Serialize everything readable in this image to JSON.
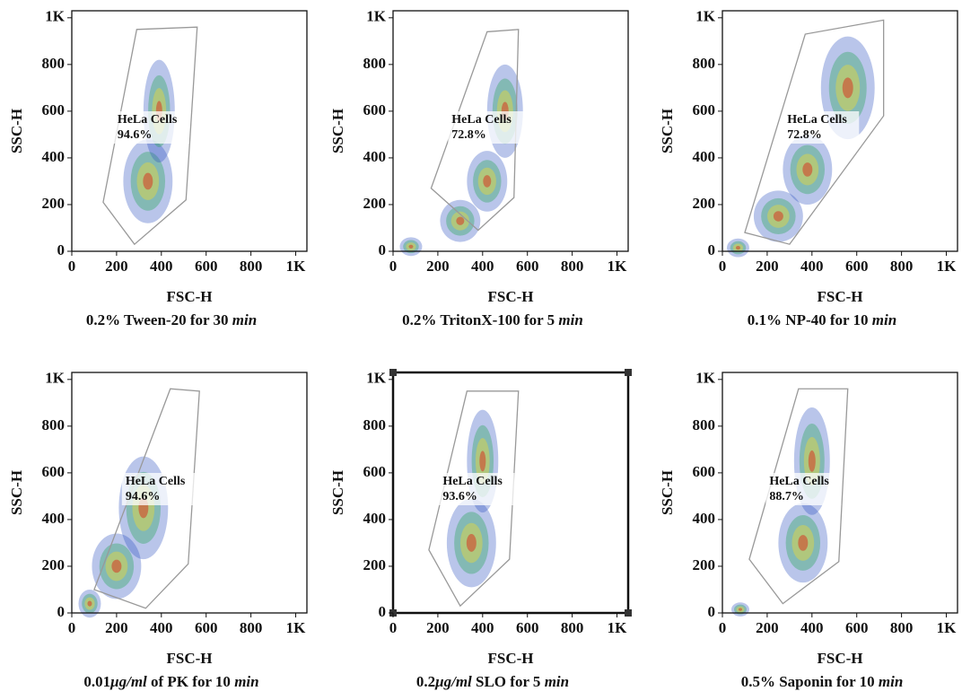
{
  "chart_data": [
    {
      "type": "scatter",
      "xlabel": "FSC-H",
      "ylabel": "SSC-H",
      "caption": [
        {
          "text": "0.2% Tween-20 for 30 "
        },
        {
          "text": "min",
          "italic": true
        }
      ],
      "xlim": [
        0,
        1050
      ],
      "ylim": [
        0,
        1030
      ],
      "xticks": [
        0,
        200,
        400,
        600,
        800,
        {
          "value": 1000,
          "label": "1K"
        }
      ],
      "yticks": [
        0,
        200,
        400,
        600,
        800,
        {
          "value": 1000,
          "label": "1K"
        }
      ],
      "gate": {
        "name": "HeLa Cells",
        "percent": "94.6%",
        "x": [
          280,
          140,
          290,
          560,
          510
        ],
        "y": [
          30,
          210,
          950,
          960,
          220
        ]
      },
      "clusters": [
        {
          "x": 340,
          "y": 300,
          "sx": 110,
          "sy": 180
        },
        {
          "x": 390,
          "y": 600,
          "sx": 70,
          "sy": 220
        }
      ]
    },
    {
      "type": "scatter",
      "xlabel": "FSC-H",
      "ylabel": "SSC-H",
      "caption": [
        {
          "text": "0.2% TritonX-100 for 5 "
        },
        {
          "text": "min",
          "italic": true
        }
      ],
      "xlim": [
        0,
        1050
      ],
      "ylim": [
        0,
        1030
      ],
      "xticks": [
        0,
        200,
        400,
        600,
        800,
        {
          "value": 1000,
          "label": "1K"
        }
      ],
      "yticks": [
        0,
        200,
        400,
        600,
        800,
        {
          "value": 1000,
          "label": "1K"
        }
      ],
      "gate": {
        "name": "HeLa Cells",
        "percent": "72.8%",
        "x": [
          170,
          420,
          560,
          540,
          380
        ],
        "y": [
          270,
          940,
          950,
          230,
          90
        ]
      },
      "clusters": [
        {
          "x": 80,
          "y": 20,
          "sx": 50,
          "sy": 40
        },
        {
          "x": 300,
          "y": 130,
          "sx": 90,
          "sy": 90
        },
        {
          "x": 420,
          "y": 300,
          "sx": 90,
          "sy": 130
        },
        {
          "x": 500,
          "y": 600,
          "sx": 80,
          "sy": 200
        }
      ]
    },
    {
      "type": "scatter",
      "xlabel": "FSC-H",
      "ylabel": "SSC-H",
      "caption": [
        {
          "text": "0.1% NP-40 for 10 "
        },
        {
          "text": "min",
          "italic": true
        }
      ],
      "xlim": [
        0,
        1050
      ],
      "ylim": [
        0,
        1030
      ],
      "xticks": [
        0,
        200,
        400,
        600,
        800,
        {
          "value": 1000,
          "label": "1K"
        }
      ],
      "yticks": [
        0,
        200,
        400,
        600,
        800,
        {
          "value": 1000,
          "label": "1K"
        }
      ],
      "gate": {
        "name": "HeLa Cells",
        "percent": "72.8%",
        "x": [
          100,
          370,
          720,
          720,
          300
        ],
        "y": [
          80,
          930,
          990,
          580,
          30
        ]
      },
      "clusters": [
        {
          "x": 70,
          "y": 15,
          "sx": 50,
          "sy": 40
        },
        {
          "x": 250,
          "y": 150,
          "sx": 110,
          "sy": 110
        },
        {
          "x": 380,
          "y": 350,
          "sx": 110,
          "sy": 150
        },
        {
          "x": 560,
          "y": 700,
          "sx": 120,
          "sy": 220
        }
      ]
    },
    {
      "type": "scatter",
      "xlabel": "FSC-H",
      "ylabel": "SSC-H",
      "caption": [
        {
          "text": "0.01"
        },
        {
          "text": "μg/ml",
          "italic": true
        },
        {
          "text": " of PK for 10 "
        },
        {
          "text": "min",
          "italic": true
        }
      ],
      "xlim": [
        0,
        1050
      ],
      "ylim": [
        0,
        1030
      ],
      "xticks": [
        0,
        200,
        400,
        600,
        800,
        {
          "value": 1000,
          "label": "1K"
        }
      ],
      "yticks": [
        0,
        200,
        400,
        600,
        800,
        {
          "value": 1000,
          "label": "1K"
        }
      ],
      "gate": {
        "name": "HeLa Cells",
        "percent": "94.6%",
        "x": [
          100,
          440,
          570,
          520,
          330
        ],
        "y": [
          100,
          960,
          950,
          210,
          20
        ]
      },
      "clusters": [
        {
          "x": 80,
          "y": 40,
          "sx": 50,
          "sy": 60
        },
        {
          "x": 200,
          "y": 200,
          "sx": 110,
          "sy": 140
        },
        {
          "x": 320,
          "y": 450,
          "sx": 110,
          "sy": 220
        }
      ]
    },
    {
      "type": "scatter",
      "xlabel": "FSC-H",
      "ylabel": "SSC-H",
      "frame": true,
      "caption": [
        {
          "text": "0.2"
        },
        {
          "text": "μg/ml",
          "italic": true
        },
        {
          "text": " SLO for 5 "
        },
        {
          "text": "min",
          "italic": true
        }
      ],
      "xlim": [
        0,
        1050
      ],
      "ylim": [
        0,
        1030
      ],
      "xticks": [
        0,
        200,
        400,
        600,
        800,
        {
          "value": 1000,
          "label": "1K"
        }
      ],
      "yticks": [
        0,
        200,
        400,
        600,
        800,
        {
          "value": 1000,
          "label": "1K"
        }
      ],
      "gate": {
        "name": "HeLa Cells",
        "percent": "93.6%",
        "x": [
          300,
          160,
          330,
          560,
          520
        ],
        "y": [
          30,
          270,
          950,
          950,
          230
        ]
      },
      "clusters": [
        {
          "x": 350,
          "y": 300,
          "sx": 110,
          "sy": 190
        },
        {
          "x": 400,
          "y": 650,
          "sx": 70,
          "sy": 220
        }
      ]
    },
    {
      "type": "scatter",
      "xlabel": "FSC-H",
      "ylabel": "SSC-H",
      "caption": [
        {
          "text": "0.5% Saponin for 10 "
        },
        {
          "text": "min",
          "italic": true
        }
      ],
      "xlim": [
        0,
        1050
      ],
      "ylim": [
        0,
        1030
      ],
      "xticks": [
        0,
        200,
        400,
        600,
        800,
        {
          "value": 1000,
          "label": "1K"
        }
      ],
      "yticks": [
        0,
        200,
        400,
        600,
        800,
        {
          "value": 1000,
          "label": "1K"
        }
      ],
      "gate": {
        "name": "HeLa Cells",
        "percent": "88.7%",
        "x": [
          270,
          120,
          340,
          560,
          520
        ],
        "y": [
          40,
          230,
          960,
          960,
          220
        ]
      },
      "clusters": [
        {
          "x": 80,
          "y": 15,
          "sx": 40,
          "sy": 30
        },
        {
          "x": 360,
          "y": 300,
          "sx": 110,
          "sy": 170
        },
        {
          "x": 400,
          "y": 650,
          "sx": 80,
          "sy": 230
        }
      ]
    }
  ]
}
